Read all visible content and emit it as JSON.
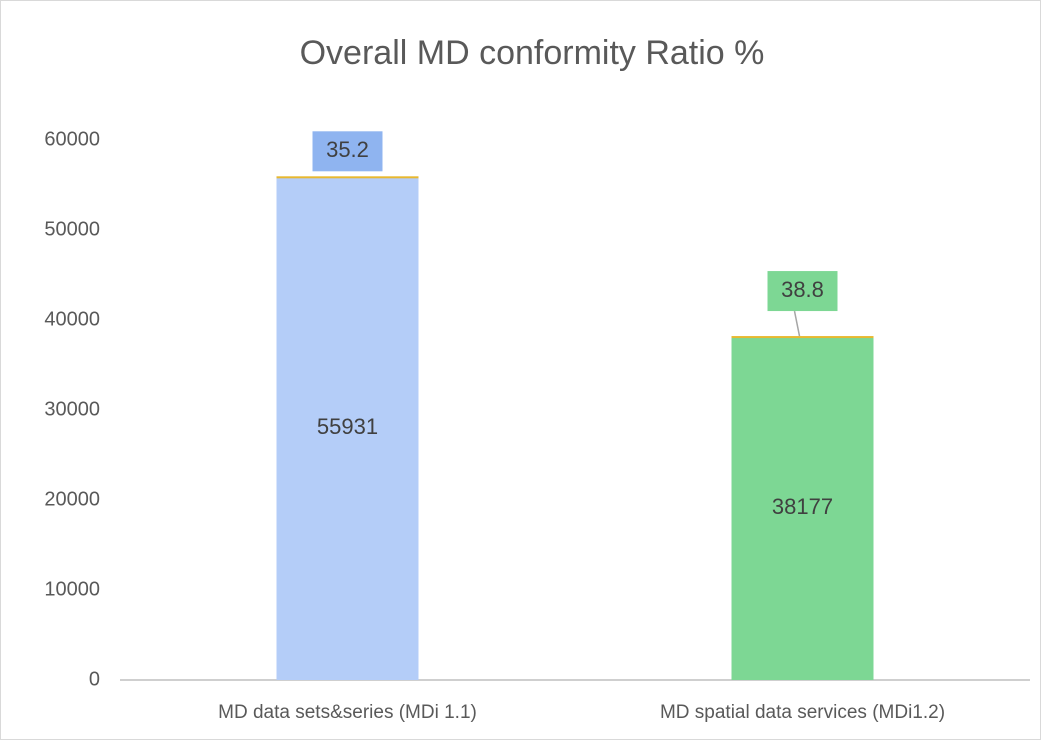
{
  "chart_data": {
    "type": "stacked-bar",
    "title": "Overall MD conformity Ratio %",
    "categories": [
      "MD data sets&series (MDi 1.1)",
      "MD spatial data services (MDi1.2)"
    ],
    "series": [
      {
        "values": [
          55931,
          38177
        ],
        "colors": [
          "#b4cdf8",
          "#7dd794"
        ]
      },
      {
        "values": [
          35.2,
          38.8
        ],
        "color": "#e8b830",
        "label_colors": [
          "#8fb4f0",
          "#7dd794"
        ]
      }
    ],
    "ylim": [
      0,
      60000
    ],
    "yticks": [
      0,
      10000,
      20000,
      30000,
      40000,
      50000,
      60000
    ],
    "grid": false
  }
}
